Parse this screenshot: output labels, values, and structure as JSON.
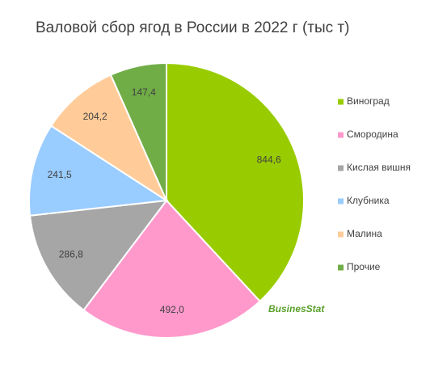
{
  "chart_data": {
    "type": "pie",
    "title": "Валовой сбор ягод в России в 2022 г (тыс т)",
    "categories": [
      "Виноград",
      "Смородина",
      "Кислая вишня",
      "Клубника",
      "Малина",
      "Прочие"
    ],
    "values": [
      844.6,
      492.0,
      286.8,
      241.5,
      204.2,
      147.4
    ],
    "value_labels": [
      "844,6",
      "492,0",
      "286,8",
      "241,5",
      "204,2",
      "147,4"
    ],
    "colors": [
      "#99cc00",
      "#ff99cc",
      "#a6a6a6",
      "#99ccff",
      "#ffcc99",
      "#70ad47"
    ],
    "legend": "right",
    "watermark": "BusinesStat"
  }
}
